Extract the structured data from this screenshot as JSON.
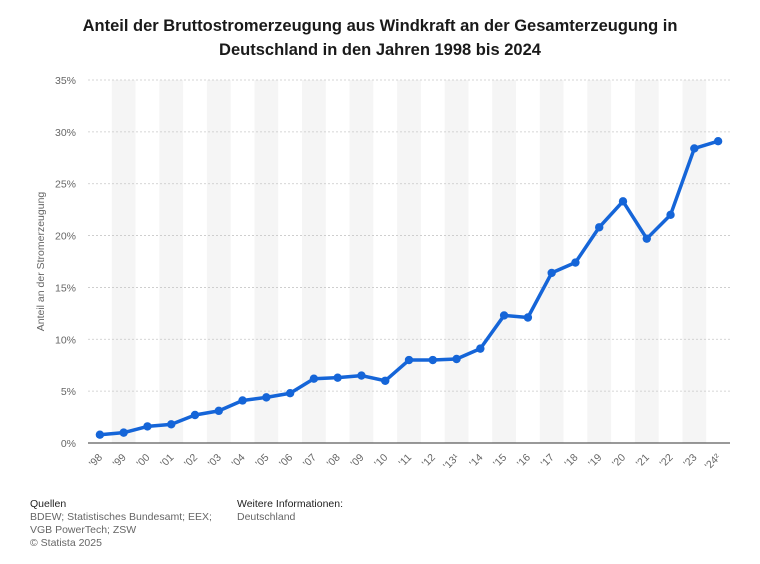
{
  "chart_data": {
    "type": "line",
    "title": "Anteil der Bruttostromerzeugung aus Windkraft an der Gesamterzeugung in Deutschland in den Jahren 1998 bis 2024",
    "ylabel": "Anteil an der Stromerzeugung",
    "xlabel": "",
    "categories": [
      "'98",
      "'99",
      "'00",
      "'01",
      "'02",
      "'03",
      "'04",
      "'05",
      "'06",
      "'07",
      "'08",
      "'09",
      "'10",
      "'11",
      "'12",
      "'13¹",
      "'14",
      "'15",
      "'16",
      "'17",
      "'18",
      "'19",
      "'20",
      "'21",
      "'22",
      "'23",
      "'24²"
    ],
    "series": [
      {
        "values": [
          0.8,
          1.0,
          1.6,
          1.8,
          2.7,
          3.1,
          4.1,
          4.4,
          4.8,
          6.2,
          6.3,
          6.5,
          6.0,
          8.0,
          8.0,
          8.1,
          9.1,
          12.3,
          12.1,
          16.4,
          17.4,
          20.8,
          23.3,
          19.7,
          22.0,
          28.4,
          29.1
        ]
      }
    ],
    "ylim": [
      0,
      35
    ],
    "yticks": [
      "0%",
      "5%",
      "10%",
      "15%",
      "20%",
      "25%",
      "30%",
      "35%"
    ],
    "grid": true,
    "alternating_bands": true,
    "line_color": "#1565d8"
  },
  "footer": {
    "sources_heading": "Quellen",
    "sources_text": "BDEW; Statistisches Bundesamt; EEX; VGB PowerTech; ZSW",
    "copyright": "© Statista 2025",
    "info_heading": "Weitere Informationen:",
    "info_text": "Deutschland"
  }
}
